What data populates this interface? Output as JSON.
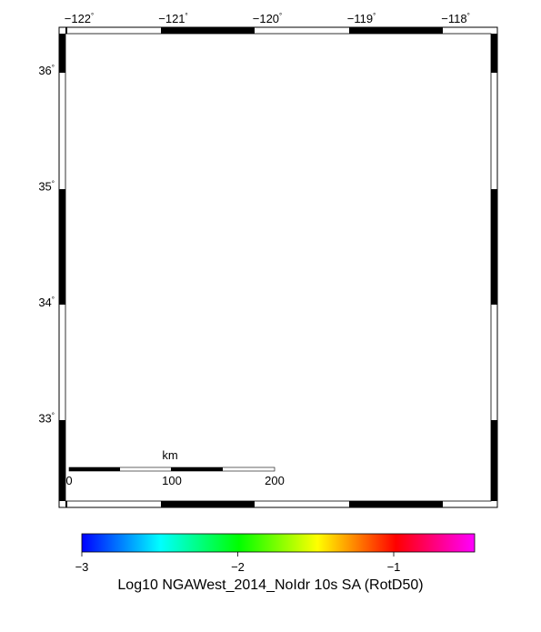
{
  "map": {
    "lon_ticks": [
      {
        "value": -122,
        "label": "−122"
      },
      {
        "value": -121,
        "label": "−121"
      },
      {
        "value": -120,
        "label": "−120"
      },
      {
        "value": -119,
        "label": "−119"
      },
      {
        "value": -118,
        "label": "−118"
      }
    ],
    "lat_ticks": [
      {
        "value": 36,
        "label": "36"
      },
      {
        "value": 35,
        "label": "35"
      },
      {
        "value": 34,
        "label": "34"
      },
      {
        "value": 33,
        "label": "33"
      }
    ],
    "degree_symbol": "°",
    "colors": {
      "land": "#154a46",
      "ocean_high": "#ffff00",
      "ocean_mid": "#00ffff",
      "ocean_low": "#0033ff"
    },
    "scale_bar": {
      "unit": "km",
      "labels": [
        "0",
        "100",
        "200"
      ]
    }
  },
  "colorbar": {
    "ticks": [
      {
        "value": -3,
        "label": "−3"
      },
      {
        "value": -2,
        "label": "−2"
      },
      {
        "value": -1,
        "label": "−1"
      }
    ],
    "label": "Log10 NGAWest_2014_NoIdr 10s SA (RotD50)",
    "colors": [
      "#0000ff",
      "#00ffff",
      "#00ff00",
      "#ffff00",
      "#ff0000",
      "#ff00ff"
    ]
  }
}
